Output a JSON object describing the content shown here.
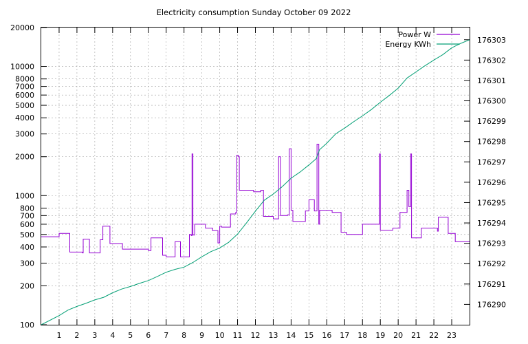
{
  "chart_data": {
    "type": "line",
    "title": "Electricity consumption Sunday October 09 2022",
    "x_range": [
      0,
      24
    ],
    "x_ticks": [
      1,
      2,
      3,
      4,
      5,
      6,
      7,
      8,
      9,
      10,
      11,
      12,
      13,
      14,
      15,
      16,
      17,
      18,
      19,
      20,
      21,
      22,
      23
    ],
    "y_scale": "log",
    "y_range": [
      100,
      20000
    ],
    "y_ticks": [
      100,
      200,
      300,
      400,
      500,
      600,
      700,
      800,
      1000,
      2000,
      3000,
      4000,
      5000,
      6000,
      7000,
      8000,
      10000,
      20000
    ],
    "y2_range": [
      176289.0,
      176303.6
    ],
    "y2_ticks": [
      176290,
      176291,
      176292,
      176293,
      176294,
      176295,
      176296,
      176297,
      176298,
      176299,
      176300,
      176301,
      176302,
      176303
    ],
    "grid": true,
    "legend_position": "top-right",
    "colors": {
      "power": "#9400d3",
      "energy": "#009e73"
    },
    "series": [
      {
        "name": "Power W",
        "axis": "y1",
        "style": "steps",
        "points": [
          [
            0,
            480
          ],
          [
            1,
            510
          ],
          [
            1.6,
            365
          ],
          [
            2.3,
            360
          ],
          [
            2.35,
            460
          ],
          [
            2.7,
            360
          ],
          [
            3.3,
            455
          ],
          [
            3.45,
            580
          ],
          [
            3.85,
            425
          ],
          [
            4.55,
            385
          ],
          [
            6.0,
            375
          ],
          [
            6.15,
            470
          ],
          [
            6.8,
            345
          ],
          [
            7.0,
            335
          ],
          [
            7.5,
            440
          ],
          [
            7.8,
            335
          ],
          [
            8.3,
            500
          ],
          [
            8.4,
            490
          ],
          [
            8.45,
            2100
          ],
          [
            8.5,
            495
          ],
          [
            8.6,
            600
          ],
          [
            9.2,
            560
          ],
          [
            9.6,
            535
          ],
          [
            9.9,
            430
          ],
          [
            10.0,
            580
          ],
          [
            10.1,
            570
          ],
          [
            10.6,
            720
          ],
          [
            10.9,
            740
          ],
          [
            10.95,
            2050
          ],
          [
            11.05,
            2000
          ],
          [
            11.1,
            1100
          ],
          [
            11.3,
            1100
          ],
          [
            11.9,
            1070
          ],
          [
            12.3,
            1100
          ],
          [
            12.45,
            690
          ],
          [
            13.0,
            660
          ],
          [
            13.3,
            2000
          ],
          [
            13.4,
            700
          ],
          [
            13.8,
            710
          ],
          [
            13.9,
            2300
          ],
          [
            14.0,
            770
          ],
          [
            14.1,
            630
          ],
          [
            14.8,
            760
          ],
          [
            15.0,
            930
          ],
          [
            15.3,
            760
          ],
          [
            15.45,
            2500
          ],
          [
            15.55,
            600
          ],
          [
            15.6,
            770
          ],
          [
            16.1,
            770
          ],
          [
            16.3,
            740
          ],
          [
            16.8,
            520
          ],
          [
            17.1,
            500
          ],
          [
            18.0,
            600
          ],
          [
            18.9,
            600
          ],
          [
            18.95,
            2100
          ],
          [
            19.0,
            540
          ],
          [
            19.7,
            560
          ],
          [
            20.1,
            740
          ],
          [
            20.5,
            1100
          ],
          [
            20.6,
            820
          ],
          [
            20.7,
            2100
          ],
          [
            20.75,
            470
          ],
          [
            21.3,
            560
          ],
          [
            22.2,
            530
          ],
          [
            22.25,
            680
          ],
          [
            22.8,
            510
          ],
          [
            23.2,
            440
          ],
          [
            24,
            440
          ]
        ]
      },
      {
        "name": "Energy KWh",
        "axis": "y2",
        "style": "line",
        "points": [
          [
            0,
            176289.0
          ],
          [
            1,
            176289.45
          ],
          [
            1.5,
            176289.72
          ],
          [
            2,
            176289.9
          ],
          [
            2.5,
            176290.05
          ],
          [
            3,
            176290.22
          ],
          [
            3.5,
            176290.35
          ],
          [
            4,
            176290.57
          ],
          [
            4.5,
            176290.75
          ],
          [
            5,
            176290.88
          ],
          [
            5.5,
            176291.03
          ],
          [
            6,
            176291.17
          ],
          [
            6.5,
            176291.37
          ],
          [
            7,
            176291.58
          ],
          [
            7.5,
            176291.72
          ],
          [
            8,
            176291.83
          ],
          [
            8.5,
            176292.06
          ],
          [
            9,
            176292.34
          ],
          [
            9.5,
            176292.59
          ],
          [
            10,
            176292.77
          ],
          [
            10.5,
            176293.05
          ],
          [
            11,
            176293.45
          ],
          [
            11.5,
            176294.0
          ],
          [
            12,
            176294.58
          ],
          [
            12.5,
            176295.12
          ],
          [
            13,
            176295.42
          ],
          [
            13.5,
            176295.78
          ],
          [
            14,
            176296.2
          ],
          [
            14.5,
            176296.5
          ],
          [
            15,
            176296.85
          ],
          [
            15.4,
            176297.15
          ],
          [
            15.6,
            176297.6
          ],
          [
            16,
            176297.92
          ],
          [
            16.5,
            176298.38
          ],
          [
            17,
            176298.66
          ],
          [
            17.5,
            176298.97
          ],
          [
            18,
            176299.26
          ],
          [
            18.5,
            176299.57
          ],
          [
            19,
            176299.93
          ],
          [
            19.5,
            176300.26
          ],
          [
            20,
            176300.62
          ],
          [
            20.5,
            176301.12
          ],
          [
            21,
            176301.42
          ],
          [
            21.5,
            176301.72
          ],
          [
            22,
            176302.0
          ],
          [
            22.5,
            176302.27
          ],
          [
            23,
            176302.6
          ],
          [
            23.5,
            176302.82
          ],
          [
            24,
            176303.0
          ]
        ]
      }
    ]
  }
}
